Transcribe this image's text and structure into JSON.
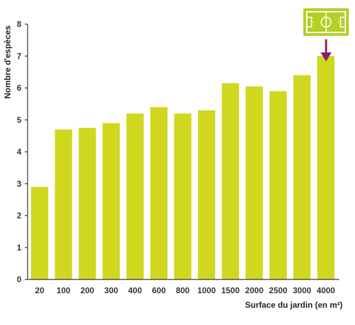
{
  "chart_data": {
    "type": "bar",
    "xlabel": "Surface du jardin (en m²)",
    "ylabel": "Nombre d'espèces",
    "ylim": [
      0,
      8
    ],
    "yticks": [
      "0",
      "1",
      "2",
      "3",
      "4",
      "5",
      "6",
      "7",
      "8"
    ],
    "categories": [
      "20",
      "100",
      "200",
      "300",
      "400",
      "600",
      "800",
      "1000",
      "1500",
      "2000",
      "2500",
      "3000",
      "4000"
    ],
    "values": [
      2.9,
      4.7,
      4.75,
      4.9,
      5.2,
      5.4,
      5.2,
      5.3,
      6.15,
      6.05,
      5.9,
      6.4,
      7.0
    ],
    "grid": false,
    "colors": {
      "bar": "#cfd81f",
      "axis": "#333333",
      "arrow": "#8b1e6b",
      "field_icon": "#b6cf26"
    },
    "annotation": {
      "icon": "football-field-icon",
      "target_category": "4000"
    }
  }
}
